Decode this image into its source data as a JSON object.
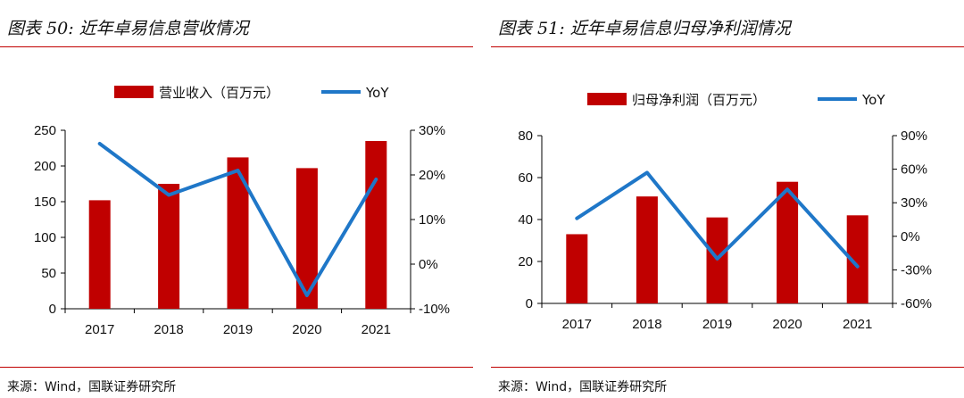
{
  "colors": {
    "bar": "#c00000",
    "line": "#1f77c8",
    "rule": "#c00000"
  },
  "left": {
    "figure_title": "图表 50:  近年卓易信息营收情况",
    "source": "来源：Wind，国联证券研究所"
  },
  "right": {
    "figure_title": "图表 51:  近年卓易信息归母净利润情况",
    "source": "来源：Wind，国联证券研究所"
  },
  "chart_data": [
    {
      "type": "bar",
      "title": "近年卓易信息营收情况",
      "categories": [
        "2017",
        "2018",
        "2019",
        "2020",
        "2021"
      ],
      "series": [
        {
          "name": "营业收入（百万元）",
          "kind": "bar",
          "axis": "left",
          "values": [
            152,
            175,
            212,
            197,
            235
          ]
        },
        {
          "name": "YoY",
          "kind": "line",
          "axis": "right",
          "values": [
            27.0,
            15.5,
            21.0,
            -7.0,
            19.0
          ]
        }
      ],
      "ylim": [
        0,
        250
      ],
      "yticks": [
        0,
        50,
        100,
        150,
        200,
        250
      ],
      "y2lim": [
        -10,
        30
      ],
      "y2ticks": [
        "-10%",
        "0%",
        "10%",
        "20%",
        "30%"
      ],
      "legend": "top-center"
    },
    {
      "type": "bar",
      "title": "近年卓易信息归母净利润情况",
      "categories": [
        "2017",
        "2018",
        "2019",
        "2020",
        "2021"
      ],
      "series": [
        {
          "name": "归母净利润（百万元）",
          "kind": "bar",
          "axis": "left",
          "values": [
            33,
            51,
            41,
            58,
            42
          ]
        },
        {
          "name": "YoY",
          "kind": "line",
          "axis": "right",
          "values": [
            16,
            57,
            -20,
            42,
            -27
          ]
        }
      ],
      "ylim": [
        0,
        80
      ],
      "yticks": [
        0,
        20,
        40,
        60,
        80
      ],
      "y2lim": [
        -60,
        90
      ],
      "y2ticks": [
        "-60%",
        "-30%",
        "0%",
        "30%",
        "60%",
        "90%"
      ],
      "legend": "top-center"
    }
  ]
}
